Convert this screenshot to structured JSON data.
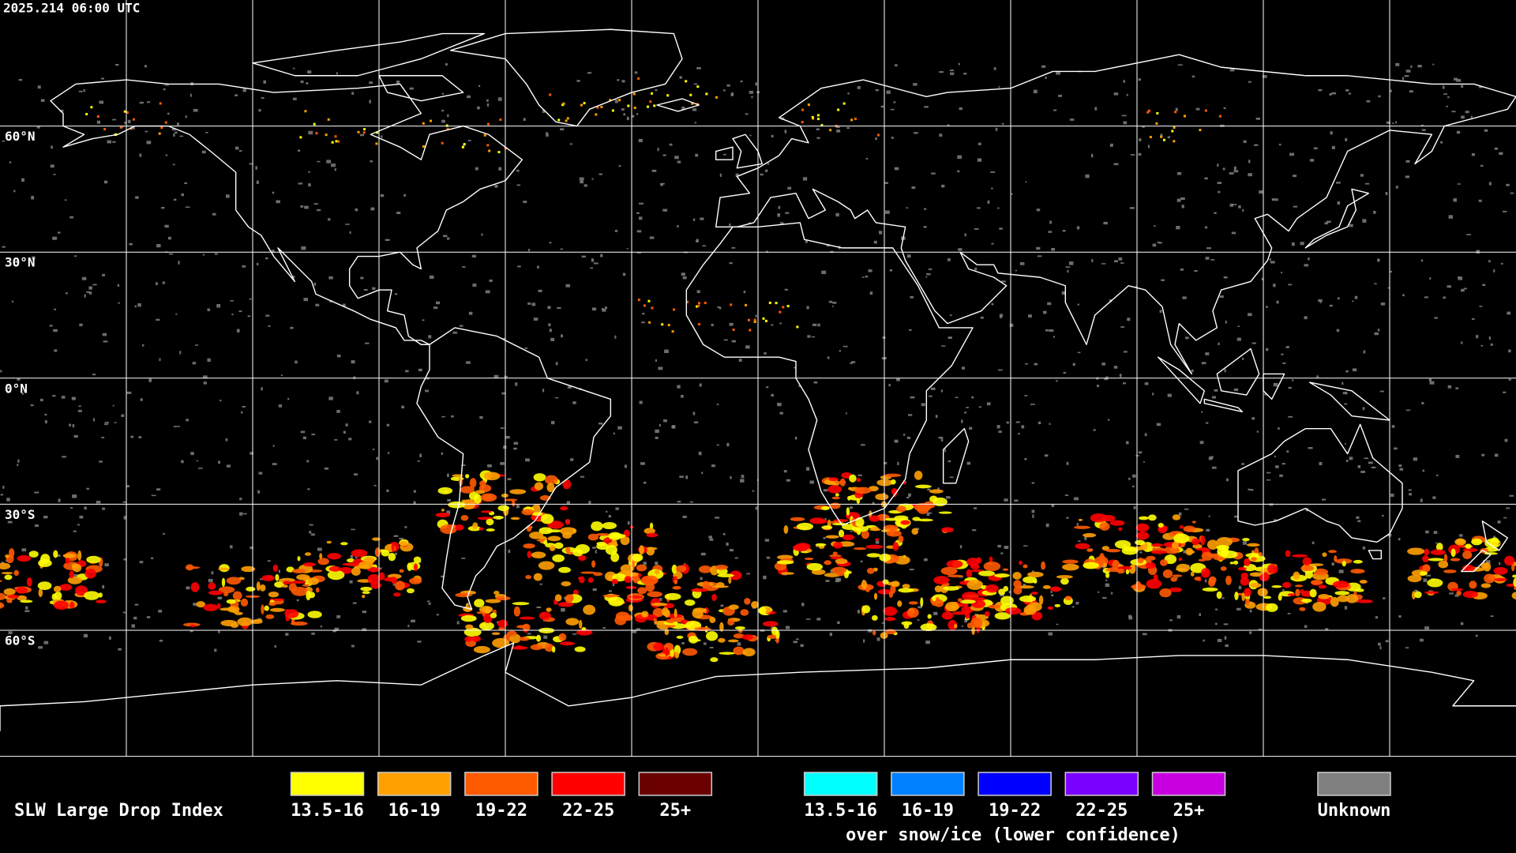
{
  "header": {
    "timestamp": "2025.214 06:00 UTC"
  },
  "map": {
    "latitude_labels": [
      "60°N",
      "30°N",
      "0°N",
      "30°S",
      "60°S"
    ]
  },
  "legend": {
    "title": "SLW Large Drop Index",
    "items": [
      {
        "label": "13.5-16",
        "color": "#ffff00"
      },
      {
        "label": "16-19",
        "color": "#ffa000"
      },
      {
        "label": "19-22",
        "color": "#ff5a00"
      },
      {
        "label": "22-25",
        "color": "#ff0000"
      },
      {
        "label": "25+",
        "color": "#6a0000"
      }
    ],
    "snow_ice_items": [
      {
        "label": "13.5-16",
        "color": "#00ffff"
      },
      {
        "label": "16-19",
        "color": "#0080ff"
      },
      {
        "label": "19-22",
        "color": "#0000ff"
      },
      {
        "label": "22-25",
        "color": "#7a00ff"
      },
      {
        "label": "25+",
        "color": "#c800e0"
      }
    ],
    "snow_ice_note": "over snow/ice (lower confidence)",
    "unknown": {
      "label": "Unknown",
      "color": "#808080"
    }
  }
}
